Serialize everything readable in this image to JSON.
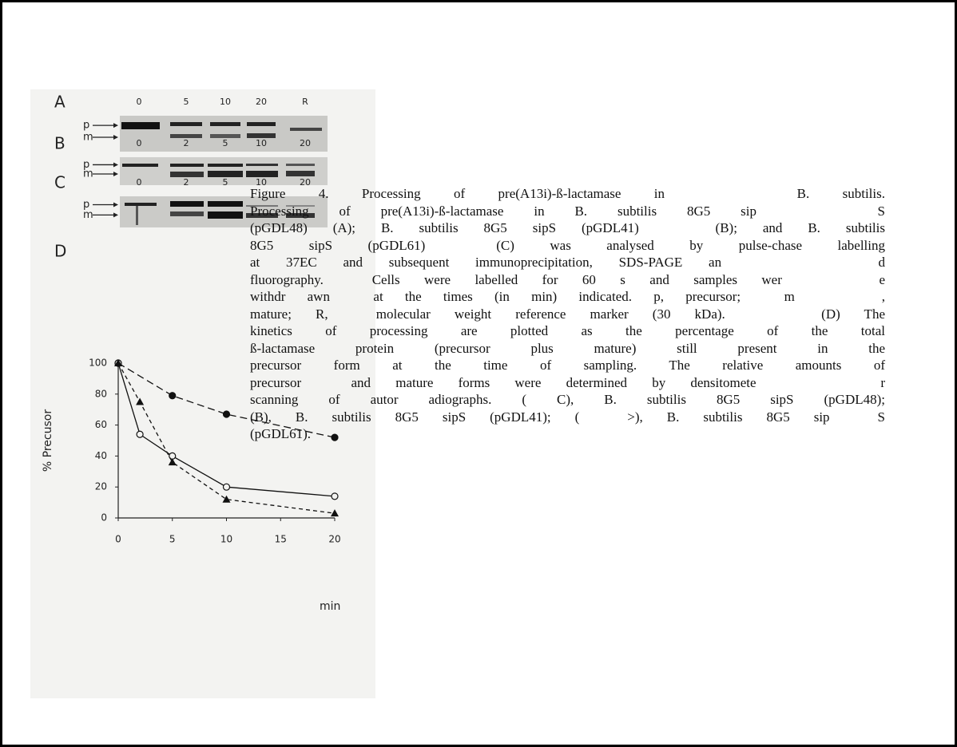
{
  "figure": {
    "panels": [
      {
        "label": "A",
        "lanes": [
          "0",
          "5",
          "10",
          "20",
          "R"
        ],
        "rows": [
          "p",
          "m"
        ]
      },
      {
        "label": "B",
        "lanes": [
          "0",
          "2",
          "5",
          "10",
          "20"
        ],
        "rows": [
          "p",
          "m"
        ]
      },
      {
        "label": "C",
        "lanes": [
          "0",
          "2",
          "5",
          "10",
          "20"
        ],
        "rows": [
          "p",
          "m"
        ]
      }
    ],
    "plot_label": "D"
  },
  "chart_data": {
    "type": "line",
    "x_label": "min",
    "y_label": "% Precusor",
    "xlim": [
      0,
      20
    ],
    "ylim": [
      0,
      100
    ],
    "xticks": [
      0,
      5,
      10,
      15,
      20
    ],
    "yticks": [
      0,
      20,
      40,
      60,
      80,
      100
    ],
    "series": [
      {
        "color": "#111111",
        "marker": "filled-circle",
        "dash": "long",
        "x": [
          0,
          5,
          10,
          20
        ],
        "values": [
          100,
          79,
          67,
          52
        ]
      },
      {
        "color": "#111111",
        "marker": "open-circle",
        "dash": "solid",
        "x": [
          0,
          2,
          5,
          10,
          20
        ],
        "values": [
          100,
          54,
          40,
          20,
          14
        ]
      },
      {
        "color": "#111111",
        "marker": "filled-triangle",
        "dash": "short",
        "x": [
          0,
          2,
          5,
          10,
          20
        ],
        "values": [
          100,
          75,
          36,
          12,
          3
        ]
      }
    ]
  },
  "caption": {
    "lines": [
      "Figure 4. Processing of pre(A13i)-ß-lactamase in    B. subtilis.",
      "Processing of pre(A13i)-ß-lactamase in B. subtilis 8G5 sip    S",
      "(pGDL48) (A); B. subtilis 8G5 sipS (pGDL41)   (B); and B. subtilis",
      "8G5 sipS (pGDL61)  (C) was analysed by pulse-chase labelling",
      "at 37EC and subsequent immunoprecipitation, SDS-PAGE an      d",
      "fluorography.  Cells were labelled for 60 s and samples wer    e",
      "withdr awn  at the times (in min) indicated. p, precursor;  m    ,",
      "mature; R,  molecular weight reference marker (30 kDa).    (D) The",
      "kinetics of processing are plotted as the percentage of the total",
      "ß-lactamase protein (precursor plus mature) still present in the",
      "precursor form at the time of sampling. The relative amounts of",
      "precursor  and mature forms were determined by densitomete     r",
      "scanning of autor adiographs. ( C), B. subtilis 8G5 sipS (pGDL48);",
      "(B), B. subtilis 8G5 sipS (pGDL41); (  >), B. subtilis 8G5 sip  S",
      "(pGDL61)."
    ]
  }
}
